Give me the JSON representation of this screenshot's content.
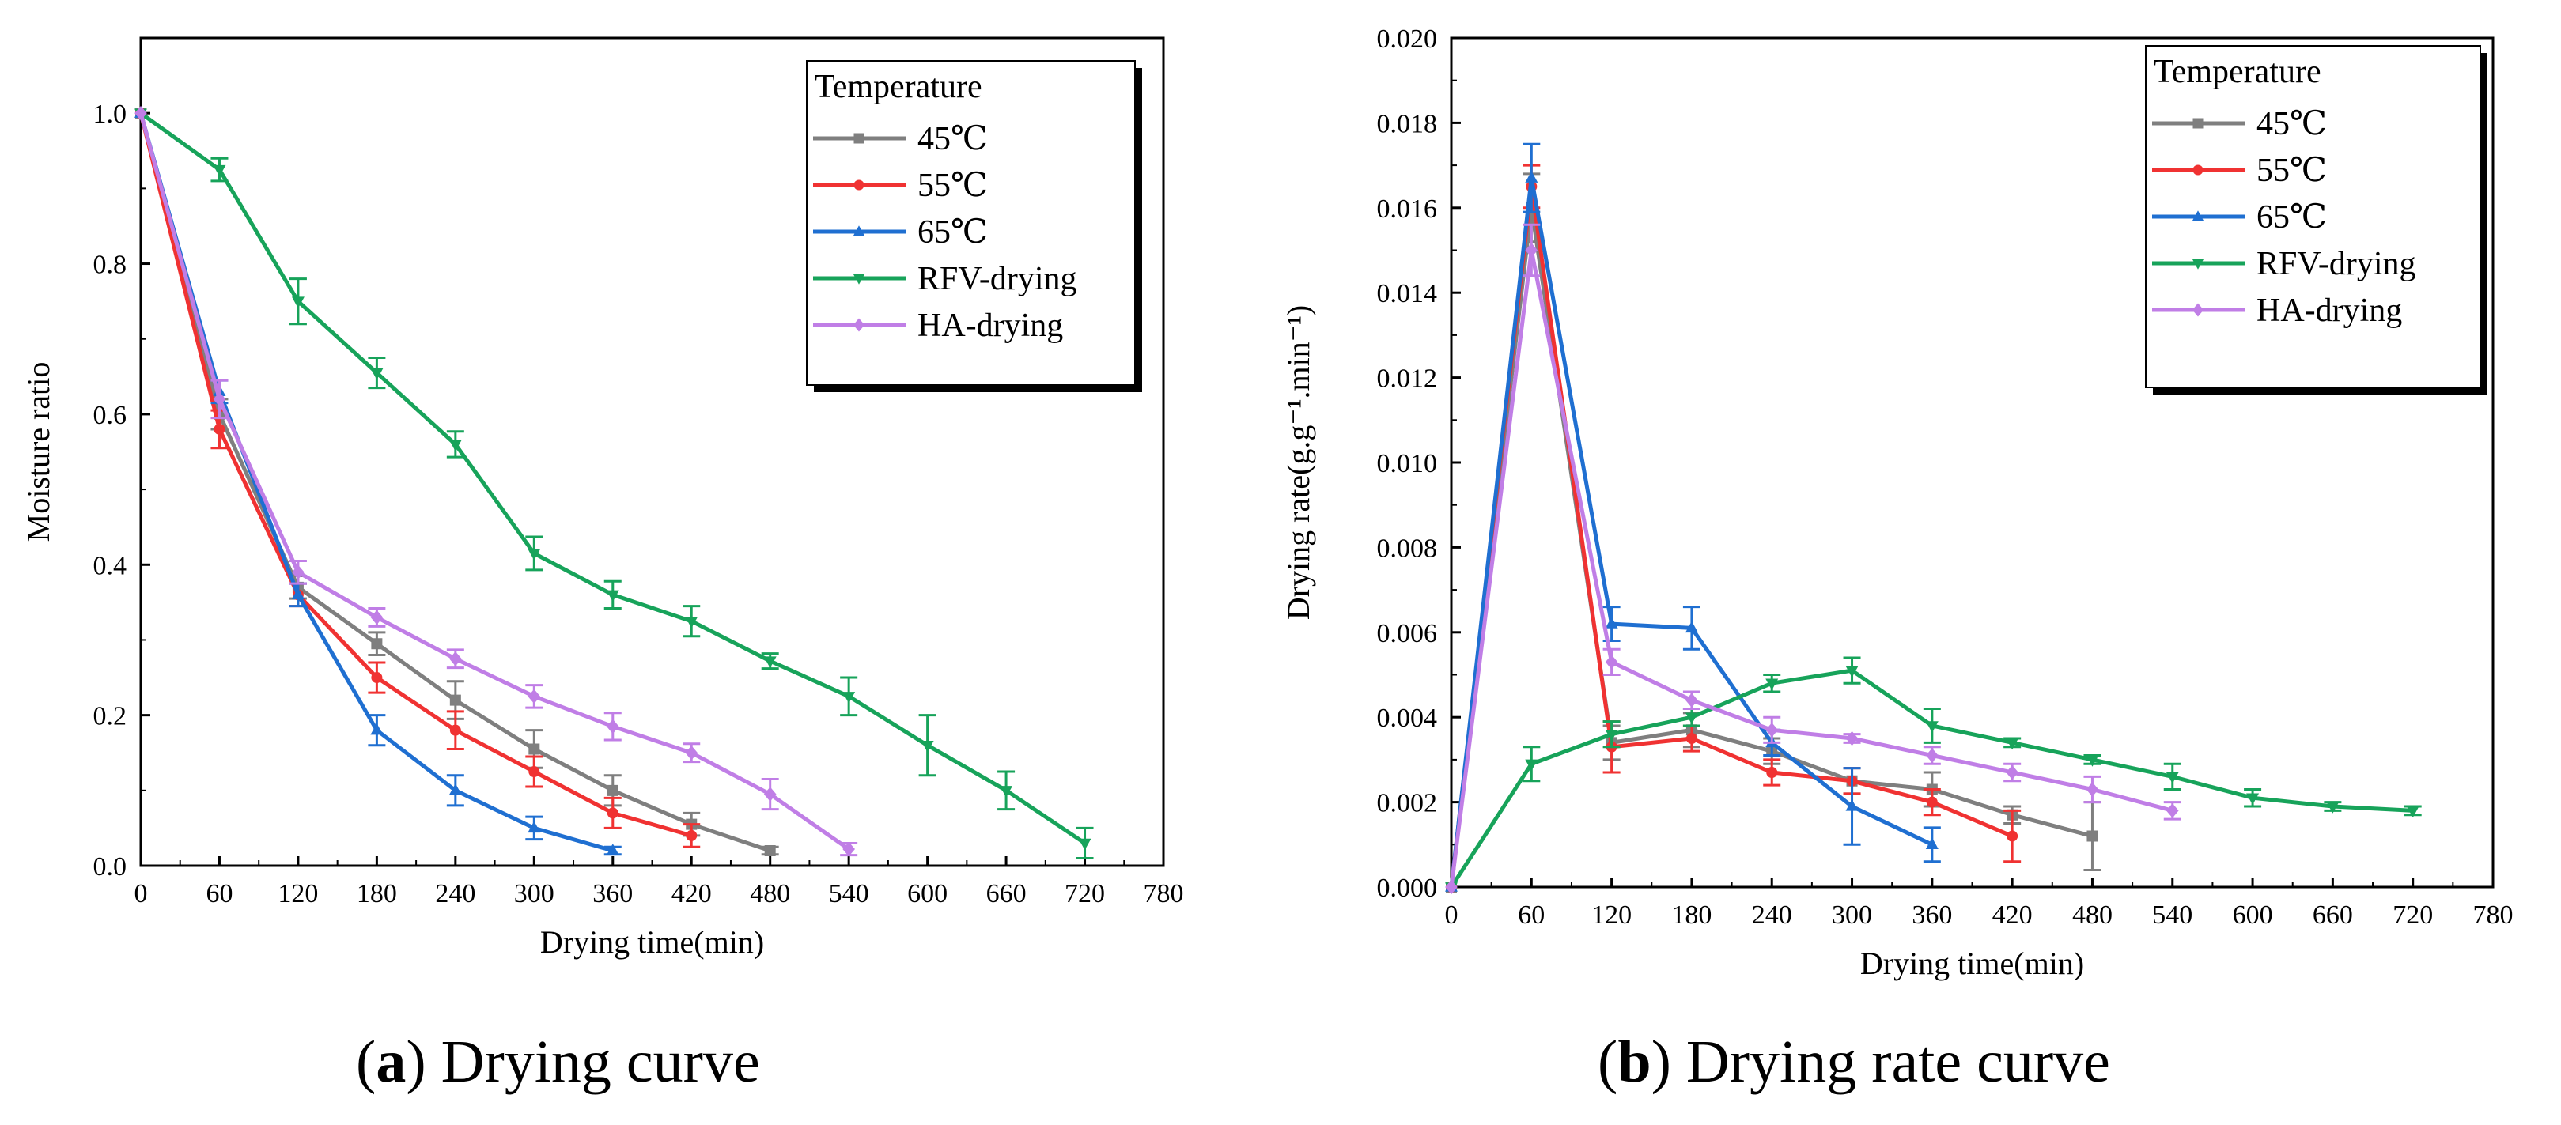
{
  "chart_data": [
    {
      "type": "line",
      "panel_label": "a",
      "caption": "Drying curve",
      "xlabel": "Drying time(min)",
      "ylabel": "Moisture ratio",
      "xlim": [
        0,
        780
      ],
      "ylim": [
        0,
        1.1
      ],
      "xticks": [
        0,
        60,
        120,
        180,
        240,
        300,
        360,
        420,
        480,
        540,
        600,
        660,
        720,
        780
      ],
      "yticks": [
        0.0,
        0.2,
        0.4,
        0.6,
        0.8,
        1.0
      ],
      "ytick_labels": [
        "0.0",
        "0.2",
        "0.4",
        "0.6",
        "0.8",
        "1.0"
      ],
      "legend_title": "Temperature",
      "legend_position": "top-right",
      "series": [
        {
          "name": "45℃",
          "color": "#7f7f7f",
          "marker": "square",
          "x": [
            0,
            60,
            120,
            180,
            240,
            300,
            360,
            420,
            480
          ],
          "y": [
            1.0,
            0.6,
            0.37,
            0.295,
            0.22,
            0.155,
            0.1,
            0.055,
            0.02
          ],
          "err": [
            0.0,
            0.02,
            0.015,
            0.015,
            0.025,
            0.025,
            0.02,
            0.015,
            0.005
          ]
        },
        {
          "name": "55℃",
          "color": "#f03232",
          "marker": "circle",
          "x": [
            0,
            60,
            120,
            180,
            240,
            300,
            360,
            420
          ],
          "y": [
            1.0,
            0.58,
            0.36,
            0.25,
            0.18,
            0.125,
            0.07,
            0.04
          ],
          "err": [
            0.0,
            0.025,
            0.015,
            0.02,
            0.025,
            0.02,
            0.02,
            0.015
          ]
        },
        {
          "name": "65℃",
          "color": "#1f6fd1",
          "marker": "triangle-up",
          "x": [
            0,
            60,
            120,
            180,
            240,
            300,
            360
          ],
          "y": [
            1.0,
            0.63,
            0.36,
            0.18,
            0.1,
            0.05,
            0.02
          ],
          "err": [
            0.0,
            0.015,
            0.015,
            0.02,
            0.02,
            0.015,
            0.005
          ]
        },
        {
          "name": "RFV-drying",
          "color": "#17a35a",
          "marker": "triangle-down",
          "x": [
            0,
            60,
            120,
            180,
            240,
            300,
            360,
            420,
            480,
            540,
            600,
            660,
            720
          ],
          "y": [
            1.0,
            0.925,
            0.75,
            0.655,
            0.56,
            0.415,
            0.36,
            0.325,
            0.272,
            0.225,
            0.16,
            0.1,
            0.03
          ],
          "err": [
            0.0,
            0.015,
            0.03,
            0.02,
            0.017,
            0.022,
            0.018,
            0.02,
            0.01,
            0.025,
            0.04,
            0.025,
            0.02
          ]
        },
        {
          "name": "HA-drying",
          "color": "#c07ee6",
          "marker": "diamond",
          "x": [
            0,
            60,
            120,
            180,
            240,
            300,
            360,
            420,
            480,
            540
          ],
          "y": [
            1.0,
            0.62,
            0.39,
            0.33,
            0.275,
            0.225,
            0.185,
            0.15,
            0.095,
            0.022
          ],
          "err": [
            0.0,
            0.025,
            0.015,
            0.012,
            0.012,
            0.015,
            0.018,
            0.012,
            0.02,
            0.008
          ]
        }
      ]
    },
    {
      "type": "line",
      "panel_label": "b",
      "caption": "Drying rate curve",
      "xlabel": "Drying time(min)",
      "ylabel": "Drying rate(g.g⁻¹.min⁻¹)",
      "xlim": [
        0,
        780
      ],
      "ylim": [
        0,
        0.02
      ],
      "xticks": [
        0,
        60,
        120,
        180,
        240,
        300,
        360,
        420,
        480,
        540,
        600,
        660,
        720,
        780
      ],
      "yticks": [
        0.0,
        0.002,
        0.004,
        0.006,
        0.008,
        0.01,
        0.012,
        0.014,
        0.016,
        0.018,
        0.02
      ],
      "ytick_labels": [
        "0.000",
        "0.002",
        "0.004",
        "0.006",
        "0.008",
        "0.010",
        "0.012",
        "0.014",
        "0.016",
        "0.018",
        "0.020"
      ],
      "legend_title": "Temperature",
      "legend_position": "top-right",
      "series": [
        {
          "name": "45℃",
          "color": "#7f7f7f",
          "marker": "square",
          "x": [
            0,
            60,
            120,
            180,
            240,
            300,
            360,
            420,
            480
          ],
          "y": [
            0.0,
            0.016,
            0.0034,
            0.0037,
            0.0032,
            0.0025,
            0.0023,
            0.0017,
            0.0012
          ],
          "err": [
            0.0,
            0.0008,
            0.0004,
            0.0004,
            0.0003,
            0.0003,
            0.0004,
            0.0002,
            0.0008
          ]
        },
        {
          "name": "55℃",
          "color": "#f03232",
          "marker": "circle",
          "x": [
            0,
            60,
            120,
            180,
            240,
            300,
            360,
            420
          ],
          "y": [
            0.0,
            0.0165,
            0.0033,
            0.0035,
            0.0027,
            0.0025,
            0.002,
            0.0012
          ],
          "err": [
            0.0,
            0.0005,
            0.0006,
            0.0003,
            0.0003,
            0.0003,
            0.0003,
            0.0006
          ]
        },
        {
          "name": "65℃",
          "color": "#1f6fd1",
          "marker": "triangle-up",
          "x": [
            0,
            60,
            120,
            180,
            240,
            300,
            360
          ],
          "y": [
            0.0,
            0.0167,
            0.0062,
            0.0061,
            0.0034,
            0.0019,
            0.001
          ],
          "err": [
            0.0,
            0.0008,
            0.0004,
            0.0005,
            0.0003,
            0.0009,
            0.0004
          ]
        },
        {
          "name": "RFV-drying",
          "color": "#17a35a",
          "marker": "triangle-down",
          "x": [
            0,
            60,
            120,
            180,
            240,
            300,
            360,
            420,
            480,
            540,
            600,
            660,
            720
          ],
          "y": [
            0.0,
            0.0029,
            0.0036,
            0.004,
            0.0048,
            0.0051,
            0.0038,
            0.0034,
            0.003,
            0.0026,
            0.0021,
            0.0019,
            0.0018
          ],
          "err": [
            0.0,
            0.0004,
            0.0003,
            0.0002,
            0.0002,
            0.0003,
            0.0004,
            0.0001,
            0.0001,
            0.0003,
            0.0002,
            0.0001,
            0.0001
          ]
        },
        {
          "name": "HA-drying",
          "color": "#c07ee6",
          "marker": "diamond",
          "x": [
            0,
            60,
            120,
            180,
            240,
            300,
            360,
            420,
            480,
            540
          ],
          "y": [
            0.0,
            0.015,
            0.0053,
            0.0044,
            0.0037,
            0.0035,
            0.0031,
            0.0027,
            0.0023,
            0.0018
          ],
          "err": [
            0.0,
            0.0006,
            0.0003,
            0.0002,
            0.0003,
            0.0001,
            0.0002,
            0.0002,
            0.0003,
            0.0002
          ]
        }
      ]
    }
  ]
}
